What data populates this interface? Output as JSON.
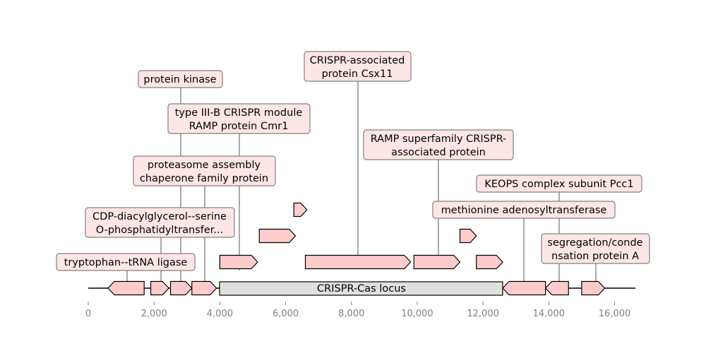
{
  "locus": {
    "label": "CRISPR-Cas locus",
    "start": 4000,
    "end": 12600
  },
  "axis": {
    "min": 0,
    "max": 16600,
    "ticks": [
      {
        "value": 0,
        "label": "0"
      },
      {
        "value": 2000,
        "label": "2,000"
      },
      {
        "value": 4000,
        "label": "4,000"
      },
      {
        "value": 6000,
        "label": "6,000"
      },
      {
        "value": 8000,
        "label": "8,000"
      },
      {
        "value": 10000,
        "label": "10,000"
      },
      {
        "value": 12000,
        "label": "12,000"
      },
      {
        "value": 14000,
        "label": "14,000"
      },
      {
        "value": 16000,
        "label": "16,000"
      }
    ]
  },
  "genes": [
    {
      "id": "g1",
      "start": 600,
      "end": 1700,
      "strand": -1,
      "row": 0
    },
    {
      "id": "g2",
      "start": 1900,
      "end": 2450,
      "strand": 1,
      "row": 0
    },
    {
      "id": "g3",
      "start": 2500,
      "end": 3150,
      "strand": 1,
      "row": 0
    },
    {
      "id": "g4",
      "start": 3150,
      "end": 3900,
      "strand": 1,
      "row": 0
    },
    {
      "id": "g5",
      "start": 4000,
      "end": 5150,
      "strand": 1,
      "row": 1
    },
    {
      "id": "g6",
      "start": 5200,
      "end": 6300,
      "strand": 1,
      "row": 2
    },
    {
      "id": "g7",
      "start": 6250,
      "end": 6650,
      "strand": 1,
      "row": 3
    },
    {
      "id": "g8",
      "start": 6600,
      "end": 9800,
      "strand": 1,
      "row": 1
    },
    {
      "id": "g9",
      "start": 9900,
      "end": 11300,
      "strand": 1,
      "row": 1
    },
    {
      "id": "g10",
      "start": 11300,
      "end": 11800,
      "strand": 1,
      "row": 2
    },
    {
      "id": "g11",
      "start": 11800,
      "end": 12600,
      "strand": 1,
      "row": 1
    },
    {
      "id": "g12",
      "start": 12600,
      "end": 13900,
      "strand": -1,
      "row": 0
    },
    {
      "id": "g13",
      "start": 13900,
      "end": 14600,
      "strand": -1,
      "row": 0
    },
    {
      "id": "g14",
      "start": 15000,
      "end": 15700,
      "strand": 1,
      "row": 0
    }
  ],
  "labels": [
    {
      "lines": [
        "tryptophan--tRNA ligase"
      ],
      "anchor": 1150,
      "center": 1150,
      "level": 0
    },
    {
      "lines": [
        "CDP-diacylglycerol--serine",
        "O-phosphatidyltransfer..."
      ],
      "anchor": 2180,
      "center": 2180,
      "level": 1
    },
    {
      "lines": [
        "proteasome assembly",
        "chaperone family protein"
      ],
      "anchor": 3550,
      "center": 3550,
      "level": 2
    },
    {
      "lines": [
        "type III-B CRISPR module",
        "RAMP protein Cmr1"
      ],
      "anchor": 4600,
      "center": 4600,
      "level": 3
    },
    {
      "lines": [
        "protein kinase"
      ],
      "anchor": 2820,
      "center": 2820,
      "level": 4
    },
    {
      "lines": [
        "CRISPR-associated",
        "protein Csx11"
      ],
      "anchor": 8200,
      "center": 8200,
      "level": 5
    },
    {
      "lines": [
        "RAMP superfamily CRISPR-",
        "associated protein"
      ],
      "anchor": 10650,
      "center": 10650,
      "level": 3
    },
    {
      "lines": [
        "methionine adenosyltransferase"
      ],
      "anchor": 13250,
      "center": 13250,
      "level": 1
    },
    {
      "lines": [
        "KEOPS complex subunit Pcc1"
      ],
      "anchor": 14300,
      "center": 14300,
      "level": 2
    },
    {
      "lines": [
        "segregation/conde",
        "nsation protein A"
      ],
      "anchor": 15400,
      "center": 15400,
      "level": 0
    }
  ],
  "colors": {
    "gene": "#ffcccc",
    "locus": "#e0e0dc",
    "label_bg": "#ffe6e6"
  }
}
